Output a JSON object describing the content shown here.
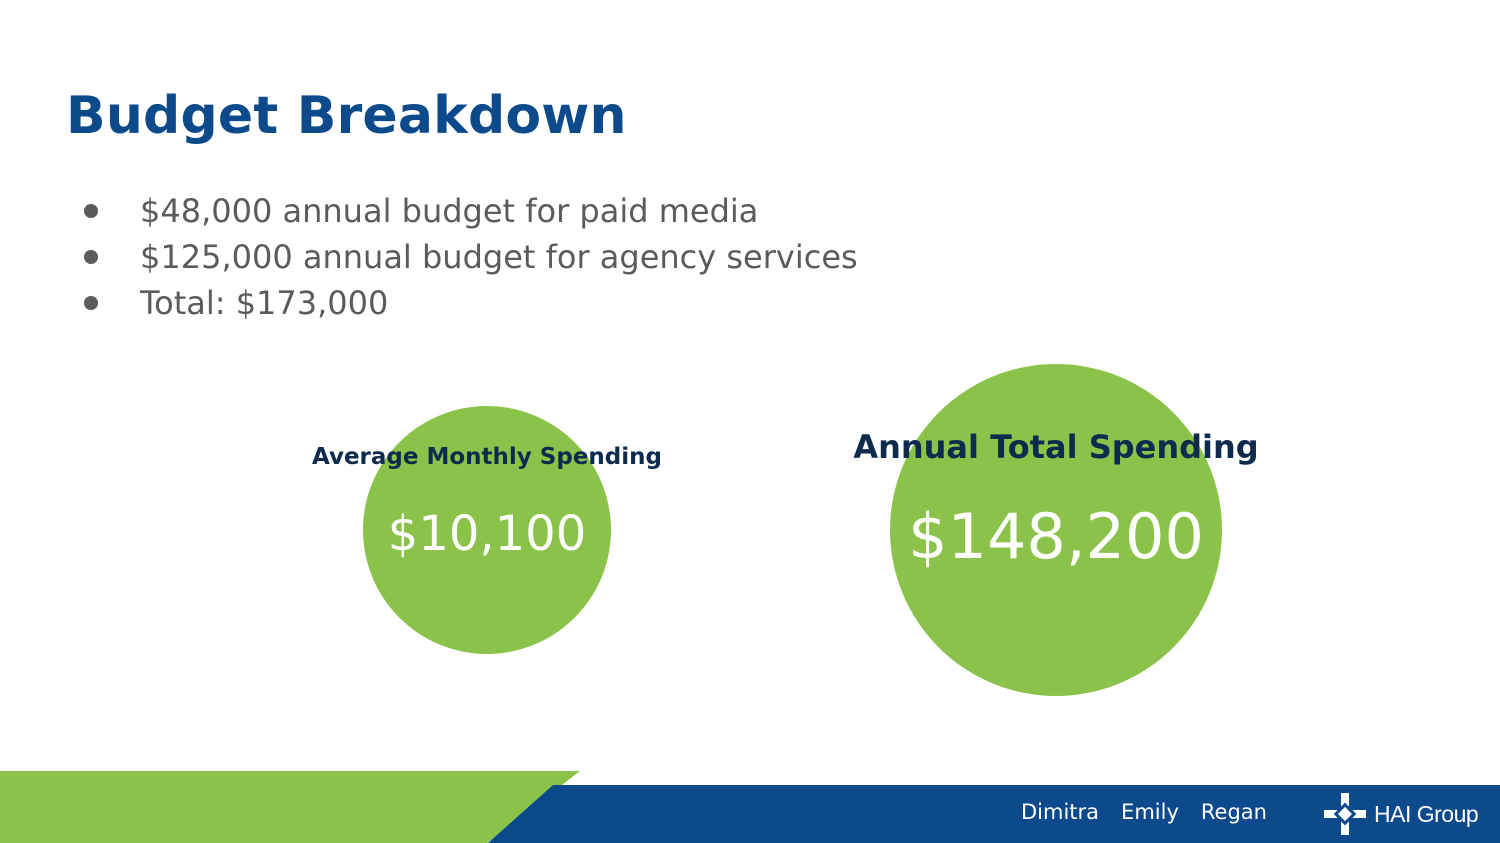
{
  "slide": {
    "title": "Budget Breakdown",
    "bullets": [
      "$48,000 annual budget for paid media",
      "$125,000 annual budget for agency services",
      "Total: $173,000"
    ]
  },
  "circles": [
    {
      "label": "Average Monthly Spending",
      "value": "$10,100"
    },
    {
      "label": "Annual Total Spending",
      "value": "$148,200"
    }
  ],
  "footer": {
    "names": [
      "Dimitra",
      "Emily",
      "Regan"
    ],
    "logo_text": "HAI Group",
    "colors": {
      "green": "#8bc34a",
      "blue": "#0d4a8c"
    }
  }
}
